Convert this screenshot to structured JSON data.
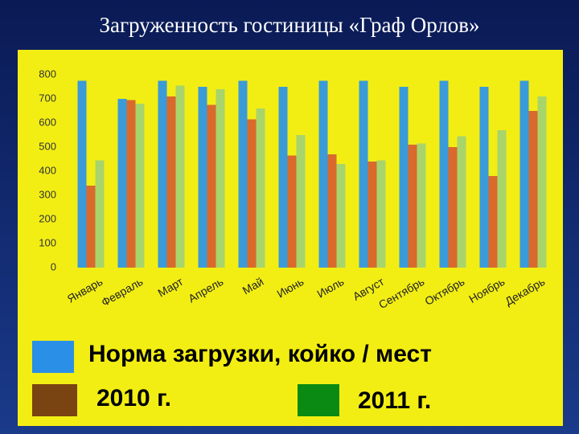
{
  "chart_data": {
    "type": "bar",
    "title": "Загруженность гостиницы «Граф Орлов»",
    "categories": [
      "Январь",
      "Февраль",
      "Март",
      "Апрель",
      "Май",
      "Июнь",
      "Июль",
      "Август",
      "Сентябрь",
      "Октябрь",
      "Ноябрь",
      "Декабрь"
    ],
    "series": [
      {
        "name": "Норма загрузки, койко / мест",
        "color": "#3b9ad8",
        "legend_color": "#2a8fe6",
        "values": [
          775,
          700,
          775,
          750,
          775,
          750,
          775,
          775,
          750,
          775,
          750,
          775
        ]
      },
      {
        "name": "2010 г.",
        "color": "#d96a2c",
        "legend_color": "#7a4412",
        "values": [
          340,
          695,
          710,
          675,
          615,
          465,
          470,
          440,
          510,
          500,
          380,
          650
        ]
      },
      {
        "name": "2011 г.",
        "color": "#a8d46c",
        "legend_color": "#0a8a12",
        "values": [
          445,
          680,
          755,
          740,
          660,
          550,
          430,
          445,
          515,
          545,
          570,
          710
        ]
      }
    ],
    "ylim": [
      0,
      800
    ],
    "yticks": [
      0,
      100,
      200,
      300,
      400,
      500,
      600,
      700,
      800
    ],
    "grid": false
  }
}
